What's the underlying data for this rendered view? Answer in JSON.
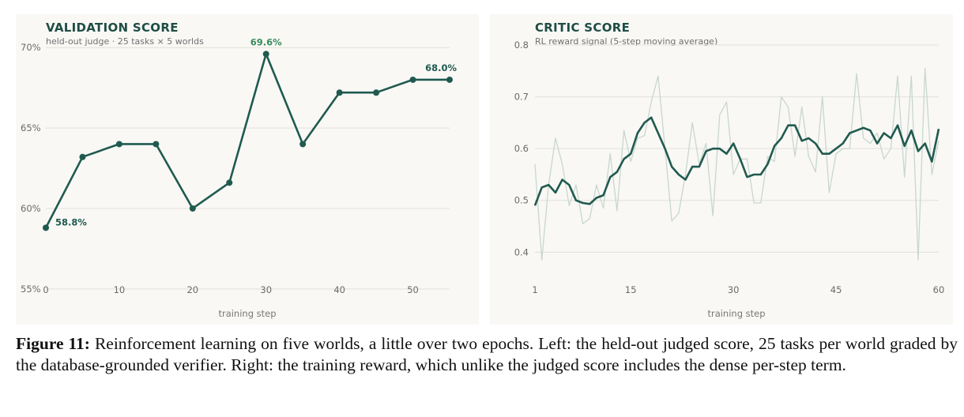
{
  "caption": {
    "label": "Figure 11:",
    "text": "Reinforcement learning on five worlds, a little over two epochs. Left: the held-out judged score, 25 tasks per world graded by the database-grounded verifier. Right: the training reward, which unlike the judged score includes the dense per-step term."
  },
  "colors": {
    "line": "#205a4f",
    "peak_label": "#3a8c5c",
    "raw_line": "#c9d6cf",
    "background": "#f9f8f5",
    "grid": "#e2e0da"
  },
  "chart_data": [
    {
      "type": "line",
      "title": "VALIDATION SCORE",
      "subtitle": "held-out judge · 25 tasks × 5 worlds",
      "xlabel": "training step",
      "ylabel": "",
      "x": [
        0,
        5,
        10,
        15,
        20,
        25,
        30,
        35,
        40,
        45,
        50,
        55
      ],
      "series": [
        {
          "values": [
            58.8,
            63.2,
            64.0,
            64.0,
            60.0,
            61.6,
            69.6,
            64.0,
            67.2,
            67.2,
            68.0,
            68.0
          ]
        }
      ],
      "xticks": [
        "0",
        "10",
        "20",
        "30",
        "40",
        "50"
      ],
      "xtick_values": [
        0,
        10,
        20,
        30,
        40,
        50
      ],
      "yticks": [
        "55%",
        "60%",
        "65%",
        "70%"
      ],
      "ytick_values": [
        55,
        60,
        65,
        70
      ],
      "xlim": [
        0,
        55
      ],
      "ylim": [
        54.5,
        70.5
      ],
      "grid": "horizontal",
      "annotations": [
        {
          "x": 0,
          "y": 58.8,
          "text": "58.8%",
          "style": "dark"
        },
        {
          "x": 30,
          "y": 69.6,
          "text": "69.6%",
          "style": "peak"
        },
        {
          "x": 55,
          "y": 68.0,
          "text": "68.0%",
          "style": "dark"
        }
      ]
    },
    {
      "type": "line",
      "title": "CRITIC SCORE",
      "subtitle": "RL reward signal (5-step moving average)",
      "xlabel": "training step",
      "ylabel": "",
      "x_start": 1,
      "series": [
        {
          "style": "raw",
          "values": [
            0.57,
            0.385,
            0.53,
            0.62,
            0.57,
            0.49,
            0.53,
            0.455,
            0.465,
            0.53,
            0.485,
            0.59,
            0.48,
            0.635,
            0.575,
            0.62,
            0.625,
            0.69,
            0.74,
            0.6,
            0.46,
            0.475,
            0.55,
            0.65,
            0.57,
            0.61,
            0.47,
            0.665,
            0.69,
            0.55,
            0.58,
            0.58,
            0.495,
            0.495,
            0.585,
            0.575,
            0.7,
            0.68,
            0.585,
            0.68,
            0.585,
            0.555,
            0.7,
            0.515,
            0.59,
            0.6,
            0.6,
            0.745,
            0.62,
            0.61,
            0.63,
            0.58,
            0.6,
            0.74,
            0.545,
            0.74,
            0.385,
            0.755,
            0.55,
            0.615
          ]
        },
        {
          "style": "smoothed",
          "values": [
            0.49,
            0.525,
            0.53,
            0.515,
            0.54,
            0.53,
            0.5,
            0.495,
            0.493,
            0.505,
            0.51,
            0.545,
            0.555,
            0.58,
            0.59,
            0.63,
            0.65,
            0.66,
            0.63,
            0.6,
            0.565,
            0.55,
            0.54,
            0.565,
            0.565,
            0.595,
            0.6,
            0.6,
            0.59,
            0.61,
            0.58,
            0.545,
            0.55,
            0.55,
            0.57,
            0.605,
            0.62,
            0.645,
            0.645,
            0.615,
            0.62,
            0.61,
            0.59,
            0.59,
            0.6,
            0.61,
            0.63,
            0.635,
            0.64,
            0.635,
            0.61,
            0.63,
            0.62,
            0.645,
            0.605,
            0.635,
            0.595,
            0.61,
            0.575,
            0.638
          ]
        }
      ],
      "xticks": [
        "1",
        "15",
        "30",
        "45",
        "60"
      ],
      "xtick_values": [
        1,
        15,
        30,
        45,
        60
      ],
      "yticks": [
        "0.4",
        "0.5",
        "0.6",
        "0.7",
        "0.8"
      ],
      "ytick_values": [
        0.4,
        0.5,
        0.6,
        0.7,
        0.8
      ],
      "xlim": [
        1,
        60
      ],
      "ylim": [
        0.37,
        0.8
      ],
      "grid": "horizontal"
    }
  ]
}
